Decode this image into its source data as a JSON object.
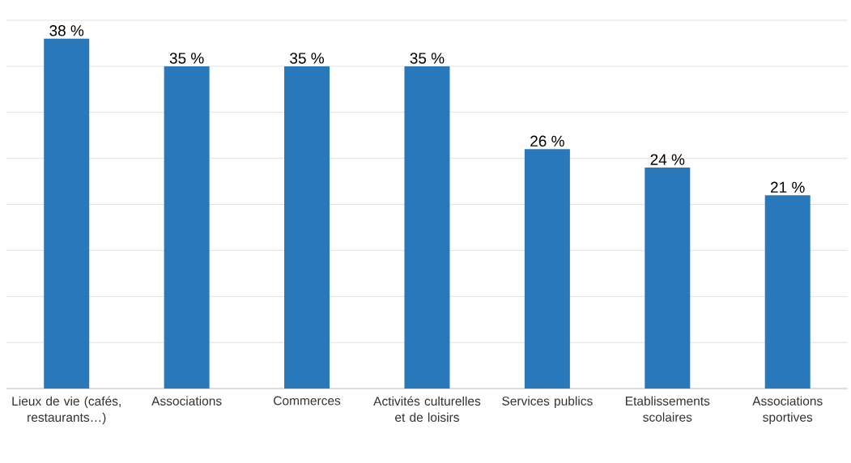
{
  "chart_data": {
    "type": "bar",
    "categories": [
      "Lieux de vie (cafés, restaurants…)",
      "Associations",
      "Commerces",
      "Activités culturelles et de loisirs",
      "Services publics",
      "Etablissements scolaires",
      "Associations sportives"
    ],
    "values": [
      38,
      35,
      35,
      35,
      26,
      24,
      21
    ],
    "value_labels": [
      "38 %",
      "35 %",
      "35 %",
      "35 %",
      "26 %",
      "24 %",
      "21 %"
    ],
    "color": "#2a78bc",
    "ylim": [
      0,
      40
    ],
    "yticks": [
      0,
      5,
      10,
      15,
      20,
      25,
      30,
      35,
      40
    ],
    "grid": "y",
    "tick_labels": "x"
  }
}
